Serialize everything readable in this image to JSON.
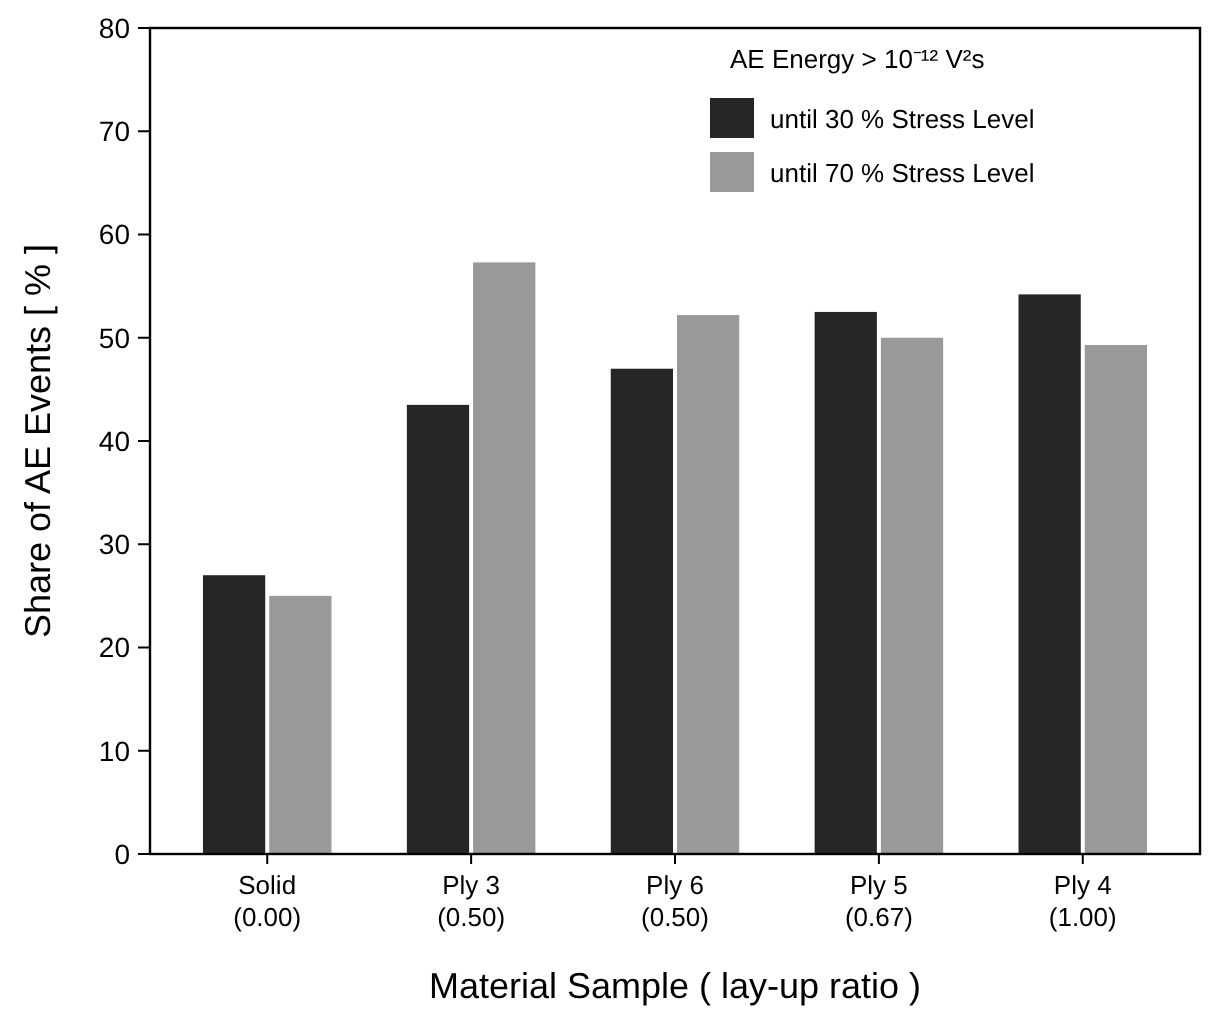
{
  "chart_data": {
    "type": "bar",
    "xlabel": "Material Sample ( lay-up ratio )",
    "ylabel": "Share of AE Events [ % ]",
    "legend_title": "AE Energy > 10⁻¹² V²s",
    "categories": [
      "Solid\n(0.00)",
      "Ply 3\n(0.50)",
      "Ply 6\n(0.50)",
      "Ply 5\n(0.67)",
      "Ply 4\n(1.00)"
    ],
    "series": [
      {
        "name": "until 30 % Stress Level",
        "color": "#262626",
        "values": [
          27,
          43.5,
          47,
          52.5,
          54.2
        ]
      },
      {
        "name": "until 70 % Stress Level",
        "color": "#999999",
        "values": [
          25,
          57.3,
          52.2,
          50,
          49.3
        ]
      }
    ],
    "ylim": [
      0,
      80
    ],
    "yticks": [
      0,
      10,
      20,
      30,
      40,
      50,
      60,
      70,
      80
    ],
    "grid": false,
    "legend": "top right"
  }
}
